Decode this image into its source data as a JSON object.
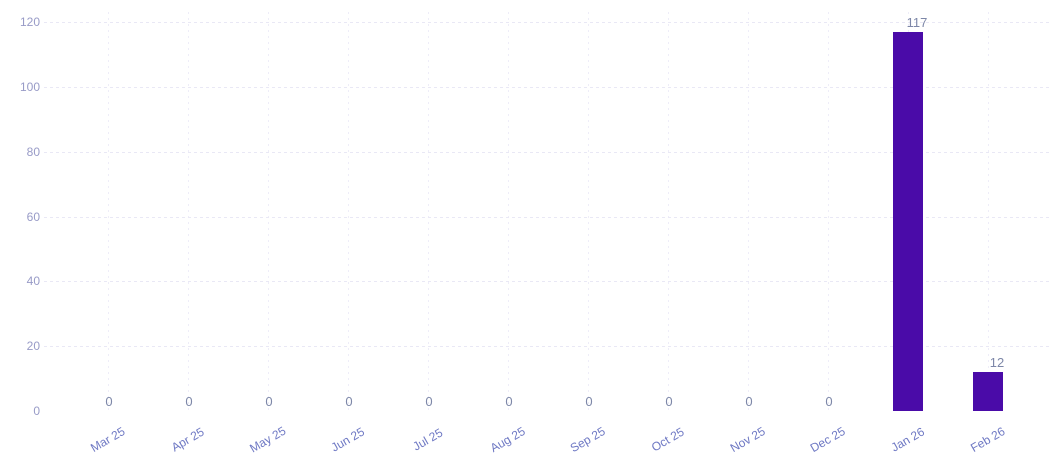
{
  "chart_data": {
    "type": "bar",
    "title": "",
    "categories": [
      "Mar 25",
      "Apr 25",
      "May 25",
      "Jun 25",
      "Jul 25",
      "Aug 25",
      "Sep 25",
      "Oct 25",
      "Nov 25",
      "Dec 25",
      "Jan 26",
      "Feb 26"
    ],
    "values": [
      0,
      0,
      0,
      0,
      0,
      0,
      0,
      0,
      0,
      0,
      117,
      12
    ],
    "data_labels": [
      "0",
      "0",
      "0",
      "0",
      "0",
      "0",
      "0",
      "0",
      "0",
      "0",
      "117",
      "12"
    ],
    "yticks": [
      0,
      20,
      40,
      60,
      80,
      100,
      120
    ],
    "ylim": [
      0,
      120
    ],
    "xlabel": "",
    "ylabel": "",
    "legend": "none",
    "grid_style": "dotted",
    "x_label_rotation_deg": -30,
    "colors": {
      "bar": "#4A0BA8",
      "grid_horizontal": "#E9E8F5",
      "grid_vertical": "#EEEDF8",
      "y_tick_label": "#989BC7",
      "x_tick_label": "#6F79C4",
      "data_label": "#7D87A8",
      "background": "#FFFFFF"
    }
  }
}
